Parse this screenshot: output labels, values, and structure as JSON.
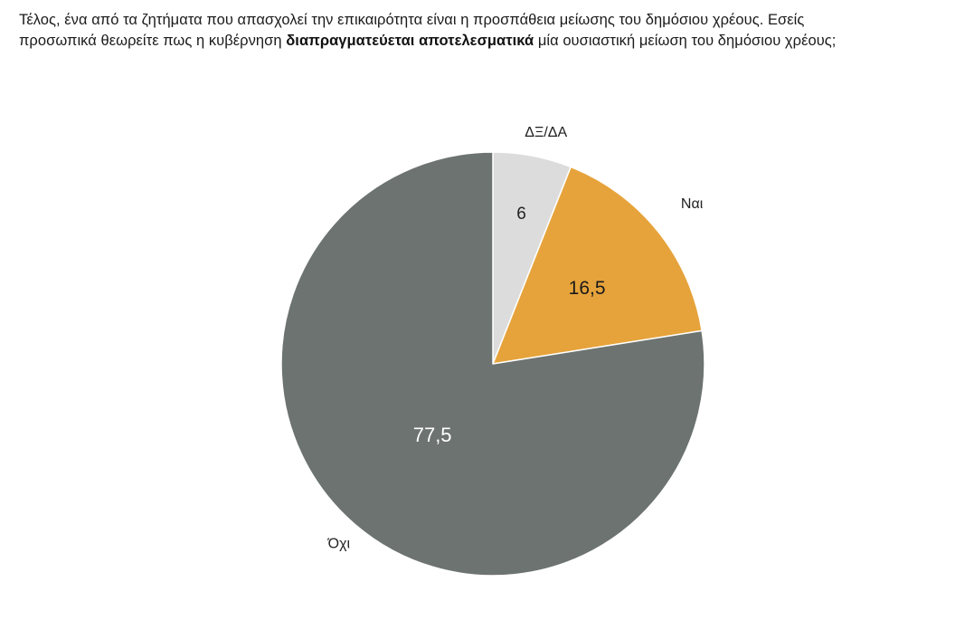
{
  "question": {
    "line1": "Τέλος, ένα από τα ζητήματα που απασχολεί την επικαιρότητα είναι η προσπάθεια μείωσης του δημόσιου χρέους. Εσείς",
    "line2_before": "προσωπικά θεωρείτε πως η κυβέρνηση ",
    "line2_bold": "διαπραγματεύεται αποτελεσματικά",
    "line2_after": " μία ουσιαστική μείωση του δημόσιου χρέους;"
  },
  "chart_data": {
    "type": "pie",
    "start_angle_deg": 0,
    "direction": "clockwise",
    "slices": [
      {
        "category": "ΔΞ/ΔΑ",
        "value": 6,
        "label": "6",
        "color": "#dcdcdc",
        "value_color": "#222222"
      },
      {
        "category": "Ναι",
        "value": 16.5,
        "label": "16,5",
        "color": "#e6a33b",
        "value_color": "#1a1a1a"
      },
      {
        "category": "Όχι",
        "value": 77.5,
        "label": "77,5",
        "color": "#6c7370",
        "value_color": "#ffffff"
      }
    ],
    "legend": "none",
    "category_label_color": "#222222"
  }
}
